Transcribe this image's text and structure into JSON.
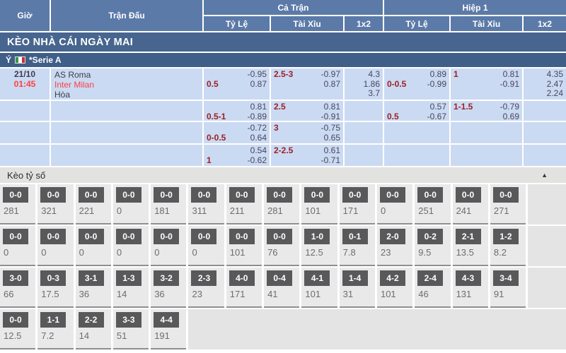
{
  "header": {
    "time": "Giờ",
    "match": "Trận Đấu",
    "full_time": "Cả Trận",
    "first_half": "Hiệp 1",
    "sub": {
      "handicap": "Tỷ Lệ",
      "over_under": "Tài Xỉu",
      "one_x_two": "1x2"
    }
  },
  "banner": "KÈO NHÀ CÁI NGÀY MAI",
  "league": {
    "country": "Ý",
    "flag": "italy-flag",
    "name": "*Serie A"
  },
  "match": {
    "date": "21/10",
    "time": "01:45",
    "home": "AS Roma",
    "away": "Inter Milan",
    "draw": "Hòa"
  },
  "odds": {
    "rows": [
      {
        "ft_tl": {
          "a": "",
          "b": "-0.95",
          "c": "0.5",
          "d": "0.87"
        },
        "ft_tx": {
          "a": "2.5-3",
          "b": "-0.97",
          "c": "",
          "d": "0.87"
        },
        "ft_1x2": {
          "x": "4.3",
          "y": "1.86",
          "z": "3.7"
        },
        "h1_tl": {
          "a": "",
          "b": "0.89",
          "c": "0-0.5",
          "d": "-0.99"
        },
        "h1_tx": {
          "a": "1",
          "b": "0.81",
          "c": "",
          "d": "-0.91"
        },
        "h1_1x2": {
          "x": "4.35",
          "y": "2.47",
          "z": "2.24"
        }
      },
      {
        "ft_tl": {
          "a": "",
          "b": "0.81",
          "c": "0.5-1",
          "d": "-0.89"
        },
        "ft_tx": {
          "a": "2.5",
          "b": "0.81",
          "c": "",
          "d": "-0.91"
        },
        "ft_1x2": {
          "x": "",
          "y": "",
          "z": ""
        },
        "h1_tl": {
          "a": "",
          "b": "0.57",
          "c": "0.5",
          "d": "-0.67"
        },
        "h1_tx": {
          "a": "1-1.5",
          "b": "-0.79",
          "c": "",
          "d": "0.69"
        },
        "h1_1x2": {
          "x": "",
          "y": "",
          "z": ""
        }
      },
      {
        "ft_tl": {
          "a": "",
          "b": "-0.72",
          "c": "0-0.5",
          "d": "0.64"
        },
        "ft_tx": {
          "a": "3",
          "b": "-0.75",
          "c": "",
          "d": "0.65"
        },
        "ft_1x2": {
          "x": "",
          "y": "",
          "z": ""
        },
        "h1_tl": {
          "a": "",
          "b": "",
          "c": "",
          "d": ""
        },
        "h1_tx": {
          "a": "",
          "b": "",
          "c": "",
          "d": ""
        },
        "h1_1x2": {
          "x": "",
          "y": "",
          "z": ""
        }
      },
      {
        "ft_tl": {
          "a": "",
          "b": "0.54",
          "c": "1",
          "d": "-0.62"
        },
        "ft_tx": {
          "a": "2-2.5",
          "b": "0.61",
          "c": "",
          "d": "-0.71"
        },
        "ft_1x2": {
          "x": "",
          "y": "",
          "z": ""
        },
        "h1_tl": {
          "a": "",
          "b": "",
          "c": "",
          "d": ""
        },
        "h1_tx": {
          "a": "",
          "b": "",
          "c": "",
          "d": ""
        },
        "h1_1x2": {
          "x": "",
          "y": "",
          "z": ""
        }
      }
    ]
  },
  "score_section": {
    "title": "Kèo tỷ số",
    "collapse_icon": "triangle-up"
  },
  "scores": {
    "rows": [
      [
        {
          "score": "0-0",
          "odds": "281"
        },
        {
          "score": "0-0",
          "odds": "321"
        },
        {
          "score": "0-0",
          "odds": "221"
        },
        {
          "score": "0-0",
          "odds": "0"
        },
        {
          "score": "0-0",
          "odds": "181"
        },
        {
          "score": "0-0",
          "odds": "311"
        },
        {
          "score": "0-0",
          "odds": "211"
        },
        {
          "score": "0-0",
          "odds": "281"
        },
        {
          "score": "0-0",
          "odds": "101"
        },
        {
          "score": "0-0",
          "odds": "171"
        },
        {
          "score": "0-0",
          "odds": "0"
        },
        {
          "score": "0-0",
          "odds": "251"
        },
        {
          "score": "0-0",
          "odds": "241"
        },
        {
          "score": "0-0",
          "odds": "271"
        }
      ],
      [
        {
          "score": "0-0",
          "odds": "0"
        },
        {
          "score": "0-0",
          "odds": "0"
        },
        {
          "score": "0-0",
          "odds": "0"
        },
        {
          "score": "0-0",
          "odds": "0"
        },
        {
          "score": "0-0",
          "odds": "0"
        },
        {
          "score": "0-0",
          "odds": "0"
        },
        {
          "score": "0-0",
          "odds": "101"
        },
        {
          "score": "0-0",
          "odds": "76"
        },
        {
          "score": "1-0",
          "odds": "12.5"
        },
        {
          "score": "0-1",
          "odds": "7.8"
        },
        {
          "score": "2-0",
          "odds": "23"
        },
        {
          "score": "0-2",
          "odds": "9.5"
        },
        {
          "score": "2-1",
          "odds": "13.5"
        },
        {
          "score": "1-2",
          "odds": "8.2"
        }
      ],
      [
        {
          "score": "3-0",
          "odds": "66"
        },
        {
          "score": "0-3",
          "odds": "17.5"
        },
        {
          "score": "3-1",
          "odds": "36"
        },
        {
          "score": "1-3",
          "odds": "14"
        },
        {
          "score": "3-2",
          "odds": "36"
        },
        {
          "score": "2-3",
          "odds": "23"
        },
        {
          "score": "4-0",
          "odds": "171"
        },
        {
          "score": "0-4",
          "odds": "41"
        },
        {
          "score": "4-1",
          "odds": "101"
        },
        {
          "score": "1-4",
          "odds": "31"
        },
        {
          "score": "4-2",
          "odds": "101"
        },
        {
          "score": "2-4",
          "odds": "46"
        },
        {
          "score": "4-3",
          "odds": "131"
        },
        {
          "score": "3-4",
          "odds": "91"
        }
      ],
      [
        {
          "score": "0-0",
          "odds": "12.5"
        },
        {
          "score": "1-1",
          "odds": "7.2"
        },
        {
          "score": "2-2",
          "odds": "14"
        },
        {
          "score": "3-3",
          "odds": "51"
        },
        {
          "score": "4-4",
          "odds": "191"
        }
      ]
    ]
  },
  "colors": {
    "header_blue": "#5b7aa8",
    "banner_blue": "#47658e",
    "league_blue": "#3f5e88",
    "row_light_blue": "#cbdaf3",
    "handicap_red": "#9c2023",
    "odds_text": "#46465a",
    "live_red": "#fb4142",
    "score_box_gray": "#59595b"
  }
}
